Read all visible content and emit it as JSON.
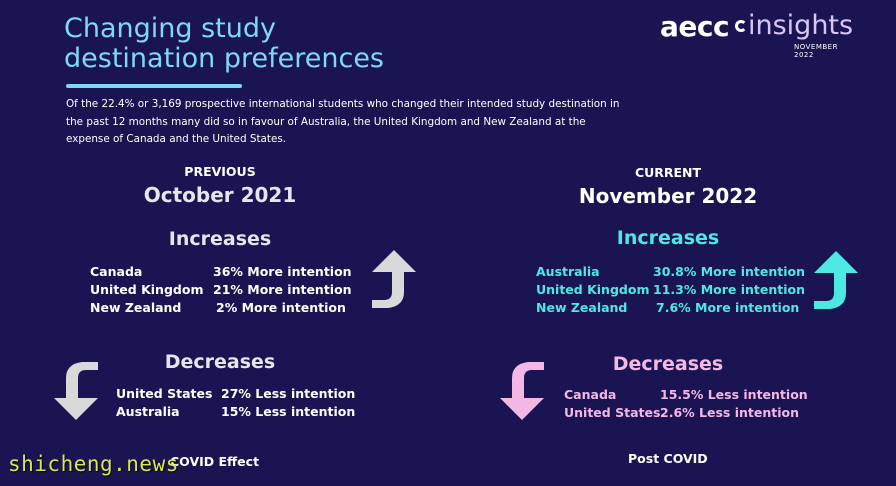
{
  "header": {
    "title_line1": "Changing study",
    "title_line2": "destination preferences",
    "intro": "Of the 22.4% or 3,169 prospective international students who changed their intended study destination in the past 12 months many did so in favour of Australia, the United Kingdom and New Zealand at the expense of Canada and the United States."
  },
  "logo": {
    "aecc": "aecc",
    "insights": "insights",
    "date": "NOVEMBER 2022"
  },
  "previous": {
    "label": "PREVIOUS",
    "date": "October 2021",
    "increases_title": "Increases",
    "increases": [
      {
        "country": "Canada",
        "value": "36% More intention"
      },
      {
        "country": "United Kingdom",
        "value": "21% More intention"
      },
      {
        "country": "New Zealand",
        "value": "2% More intention"
      }
    ],
    "decreases_title": "Decreases",
    "decreases": [
      {
        "country": "United States",
        "value": "27% Less intention"
      },
      {
        "country": "Australia",
        "value": "15% Less intention"
      }
    ],
    "footer": "COVID Effect"
  },
  "current": {
    "label": "CURRENT",
    "date": "November 2022",
    "increases_title": "Increases",
    "increases": [
      {
        "country": "Australia",
        "value": "30.8% More intention"
      },
      {
        "country": "United Kingdom",
        "value": "11.3% More intention"
      },
      {
        "country": "New Zealand",
        "value": "7.6% More intention"
      }
    ],
    "decreases_title": "Decreases",
    "decreases": [
      {
        "country": "Canada",
        "value": "15.5% Less intention"
      },
      {
        "country": "United States",
        "value": "2.6% Less intention"
      }
    ],
    "footer": "Post COVID"
  },
  "watermark": "shicheng.news",
  "colors": {
    "background": "#1a1552",
    "accent_blue": "#7fd8f5",
    "teal": "#4ee8e3",
    "pink": "#f4b8e4",
    "grey_arrow": "#d9d9d9"
  }
}
